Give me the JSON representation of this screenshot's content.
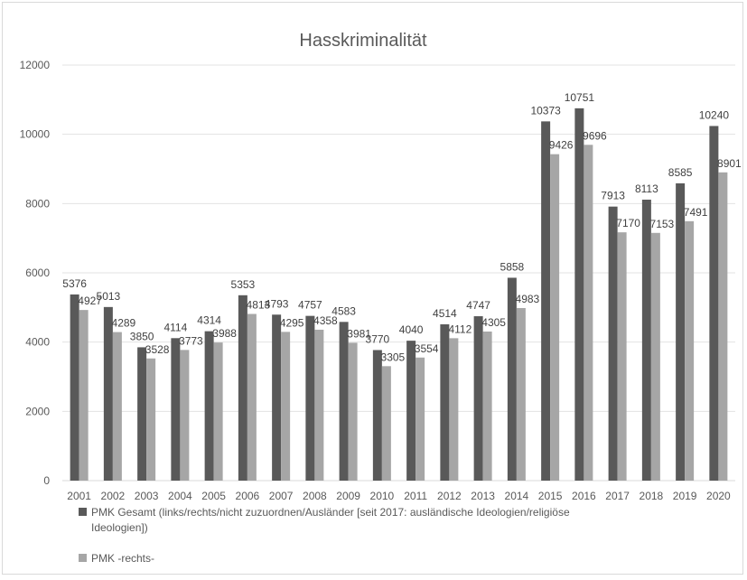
{
  "chart_data": {
    "type": "bar",
    "title": "Hasskriminalität",
    "xlabel": "",
    "ylabel": "",
    "ylim": [
      0,
      12000
    ],
    "yticks": [
      "0",
      "2000",
      "4000",
      "6000",
      "8000",
      "10000",
      "12000"
    ],
    "grid": true,
    "legend_position": "bottom-left",
    "categories": [
      "2001",
      "2002",
      "2003",
      "2004",
      "2005",
      "2006",
      "2007",
      "2008",
      "2009",
      "2010",
      "2011",
      "2012",
      "2013",
      "2014",
      "2015",
      "2016",
      "2017",
      "2018",
      "2019",
      "2020"
    ],
    "series": [
      {
        "name": "PMK Gesamt (links/rechts/nicht zuzuordnen/Ausländer [seit 2017: ausländische Ideologien/religiöse Ideologien])",
        "legend_lines": [
          "PMK Gesamt (links/rechts/nicht zuzuordnen/Ausländer [seit 2017: ausländische Ideologien/religiöse",
          "Ideologien])"
        ],
        "color": "#595959",
        "values": [
          5376,
          5013,
          3850,
          4114,
          4314,
          5353,
          4793,
          4757,
          4583,
          3770,
          4040,
          4514,
          4747,
          5858,
          10373,
          10751,
          7913,
          8113,
          8585,
          10240
        ]
      },
      {
        "name": "PMK -rechts-",
        "legend_lines": [
          "PMK -rechts-"
        ],
        "color": "#a6a6a6",
        "values": [
          4927,
          4289,
          3528,
          3773,
          3988,
          4813,
          4295,
          4358,
          3981,
          3305,
          3554,
          4112,
          4305,
          4983,
          9426,
          9696,
          7170,
          7153,
          7491,
          8901
        ]
      }
    ]
  }
}
